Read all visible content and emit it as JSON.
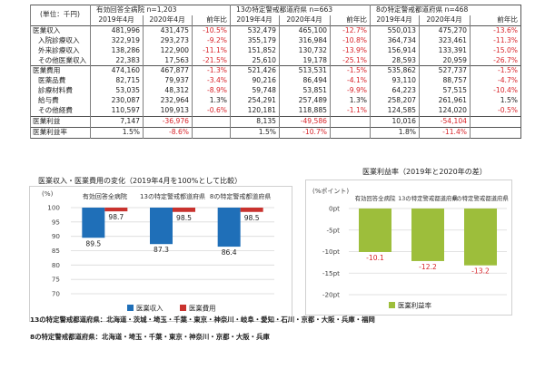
{
  "table": {
    "unit": "(単位：千円)",
    "groups": [
      {
        "name": "有効回答全病院",
        "n": "n=1,203"
      },
      {
        "name": "13の特定警戒都道府県",
        "n": "n=663"
      },
      {
        "name": "8の特定警戒都道府県",
        "n": "n=468"
      }
    ],
    "columns": [
      "2019年4月",
      "2020年4月",
      "前年比"
    ],
    "rows": [
      {
        "label": "医業収入",
        "cells": [
          "481,996",
          "431,475",
          "-10.5%",
          "532,479",
          "465,100",
          "-12.7%",
          "550,013",
          "475,270",
          "-13.6%"
        ]
      },
      {
        "label": "入院診療収入",
        "cells": [
          "322,919",
          "293,273",
          "-9.2%",
          "355,179",
          "316,984",
          "-10.8%",
          "364,734",
          "323,461",
          "-11.3%"
        ]
      },
      {
        "label": "外来診療収入",
        "cells": [
          "138,286",
          "122,900",
          "-11.1%",
          "151,852",
          "130,732",
          "-13.9%",
          "156,914",
          "133,391",
          "-15.0%"
        ]
      },
      {
        "label": "その他医業収入",
        "cells": [
          "22,383",
          "17,563",
          "-21.5%",
          "25,610",
          "19,178",
          "-25.1%",
          "28,593",
          "20,959",
          "-26.7%"
        ]
      },
      {
        "label": "医業費用",
        "cells": [
          "474,160",
          "467,877",
          "-1.3%",
          "521,426",
          "513,531",
          "-1.5%",
          "535,862",
          "527,737",
          "-1.5%"
        ]
      },
      {
        "label": "医薬品費",
        "cells": [
          "82,715",
          "79,937",
          "-3.4%",
          "90,216",
          "86,494",
          "-4.1%",
          "93,110",
          "88,757",
          "-4.7%"
        ]
      },
      {
        "label": "診療材料費",
        "cells": [
          "53,035",
          "48,312",
          "-8.9%",
          "59,748",
          "53,851",
          "-9.9%",
          "64,223",
          "57,515",
          "-10.4%"
        ]
      },
      {
        "label": "給与費",
        "cells": [
          "230,087",
          "232,964",
          "1.3%",
          "254,291",
          "257,489",
          "1.3%",
          "258,207",
          "261,961",
          "1.5%"
        ]
      },
      {
        "label": "その他経費",
        "cells": [
          "110,597",
          "109,913",
          "-0.6%",
          "120,181",
          "118,885",
          "-1.1%",
          "124,585",
          "124,020",
          "-0.5%"
        ]
      },
      {
        "label": "医業利益",
        "cells": [
          "7,147",
          "-36,976",
          "",
          "8,135",
          "-49,586",
          "",
          "10,016",
          "-54,104",
          ""
        ]
      },
      {
        "label": "医業利益率",
        "cells": [
          "1.5%",
          "-8.6%",
          "",
          "1.5%",
          "-10.7%",
          "",
          "1.8%",
          "-11.4%",
          ""
        ]
      }
    ]
  },
  "chart_data": [
    {
      "type": "bar",
      "title": "医業収入・医業費用の変化（2019年4月を100%として比較）",
      "ylabel": "(%)",
      "ylim": [
        70,
        100
      ],
      "yticks": [
        "100",
        "95",
        "90",
        "85",
        "80",
        "75",
        "70"
      ],
      "categories": [
        "有効回答全病院",
        "13の特定警戒都道府県",
        "8の特定警戒都道府県"
      ],
      "series": [
        {
          "name": "医業収入",
          "color": "#1f6fb8",
          "values": [
            89.5,
            87.3,
            86.4
          ],
          "labels": [
            "89.5",
            "87.3",
            "86.4"
          ]
        },
        {
          "name": "医業費用",
          "color": "#c9322e",
          "values": [
            98.7,
            98.5,
            98.5
          ],
          "labels": [
            "98.7",
            "98.5",
            "98.5"
          ]
        }
      ],
      "legend": "bottom"
    },
    {
      "type": "bar",
      "title": "医業利益率（2019年と2020年の差）",
      "ylabel": "(%ポイント)",
      "ylim": [
        -20,
        0
      ],
      "yticks": [
        "0pt",
        "-5pt",
        "-10pt",
        "-15pt",
        "-20pt"
      ],
      "categories": [
        "有効回答全病院",
        "13の特定警戒都道府県",
        "8の特定警戒都道府県"
      ],
      "series": [
        {
          "name": "医業利益率",
          "color": "#9dbe3b",
          "values": [
            -10.1,
            -12.2,
            -13.2
          ],
          "labels": [
            "-10.1",
            "-12.2",
            "-13.2"
          ]
        }
      ],
      "legend": "bottom"
    }
  ],
  "footnotes": [
    "13の特定警戒都道府県：北海道・茨城・埼玉・千葉・東京・神奈川・岐阜・愛知・石川・京都・大阪・兵庫・福岡",
    "8の特定警戒都道府県：北海道・埼玉・千葉・東京・神奈川・京都・大阪・兵庫"
  ],
  "colors": {
    "negative": "#d8242a",
    "grid": "#d9d9d9"
  }
}
